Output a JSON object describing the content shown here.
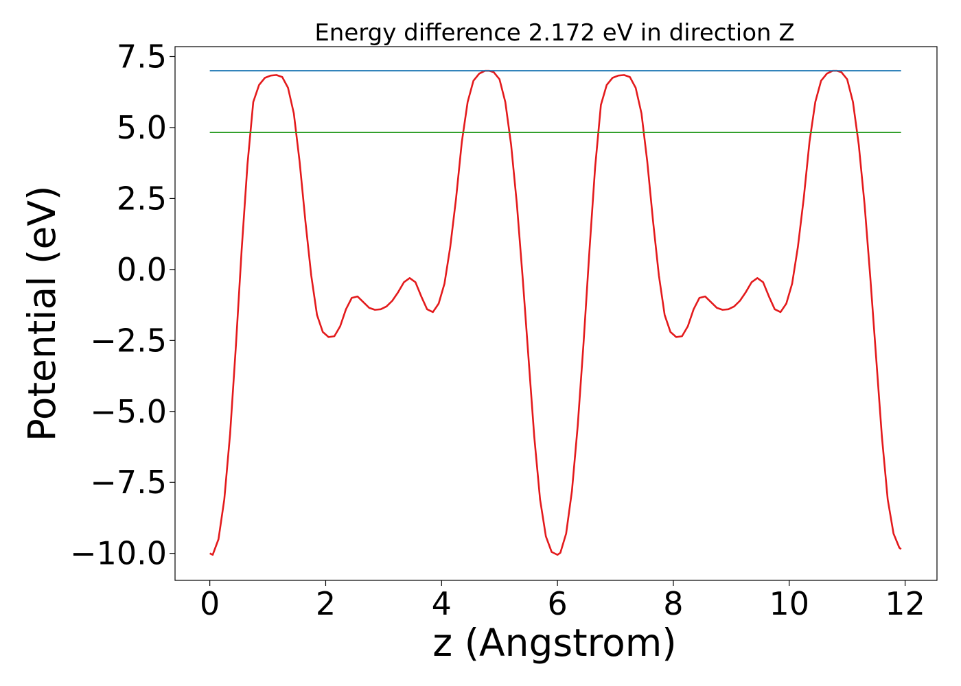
{
  "chart_data": {
    "type": "line",
    "title": "Energy difference 2.172 eV in direction Z",
    "xlabel": "z (Angstrom)",
    "ylabel": "Potential (eV)",
    "xlim": [
      -0.6,
      12.55
    ],
    "ylim": [
      -10.95,
      7.85
    ],
    "xticks": [
      0,
      2,
      4,
      6,
      8,
      10,
      12
    ],
    "xtick_labels": [
      "0",
      "2",
      "4",
      "6",
      "8",
      "10",
      "12"
    ],
    "yticks": [
      -10,
      -7.5,
      -5,
      -2.5,
      0,
      2.5,
      5,
      7.5
    ],
    "ytick_labels": [
      "−10.0",
      "−7.5",
      "−5.0",
      "−2.5",
      "0.0",
      "2.5",
      "5.0",
      "7.5"
    ],
    "grid": false,
    "series": [
      {
        "color": "#e31a1c",
        "x": [
          0,
          0.05,
          0.15,
          0.25,
          0.35,
          0.45,
          0.55,
          0.65,
          0.75,
          0.85,
          0.95,
          1.05,
          1.15,
          1.25,
          1.35,
          1.45,
          1.55,
          1.65,
          1.75,
          1.85,
          1.95,
          2.05,
          2.15,
          2.25,
          2.35,
          2.45,
          2.55,
          2.65,
          2.75,
          2.85,
          2.95,
          3.05,
          3.15,
          3.25,
          3.35,
          3.45,
          3.55,
          3.65,
          3.75,
          3.85,
          3.95,
          4.05,
          4.15,
          4.25,
          4.35,
          4.45,
          4.55,
          4.65,
          4.75,
          4.82,
          4.9,
          5.0,
          5.1,
          5.2,
          5.3,
          5.4,
          5.5,
          5.6,
          5.7,
          5.8,
          5.9,
          6.0,
          6.05,
          6.15,
          6.25,
          6.35,
          6.45,
          6.55,
          6.65,
          6.75,
          6.85,
          6.95,
          7.05,
          7.15,
          7.25,
          7.35,
          7.45,
          7.55,
          7.65,
          7.75,
          7.85,
          7.95,
          8.05,
          8.15,
          8.25,
          8.35,
          8.45,
          8.55,
          8.65,
          8.75,
          8.85,
          8.95,
          9.05,
          9.15,
          9.25,
          9.35,
          9.45,
          9.55,
          9.65,
          9.75,
          9.85,
          9.95,
          10.05,
          10.15,
          10.25,
          10.35,
          10.45,
          10.55,
          10.65,
          10.75,
          10.82,
          10.9,
          11.0,
          11.1,
          11.2,
          11.3,
          11.4,
          11.5,
          11.6,
          11.7,
          11.8,
          11.9,
          11.93
        ],
        "y": [
          -10.0,
          -10.05,
          -9.5,
          -8.1,
          -5.8,
          -2.7,
          0.7,
          3.7,
          5.9,
          6.5,
          6.75,
          6.83,
          6.85,
          6.78,
          6.4,
          5.5,
          3.8,
          1.7,
          -0.2,
          -1.6,
          -2.2,
          -2.38,
          -2.35,
          -2.0,
          -1.4,
          -1.0,
          -0.95,
          -1.15,
          -1.35,
          -1.42,
          -1.4,
          -1.3,
          -1.1,
          -0.8,
          -0.45,
          -0.3,
          -0.45,
          -0.95,
          -1.4,
          -1.5,
          -1.2,
          -0.5,
          0.8,
          2.5,
          4.5,
          5.9,
          6.65,
          6.9,
          7.0,
          7.0,
          6.95,
          6.7,
          5.9,
          4.4,
          2.3,
          -0.3,
          -3.1,
          -5.9,
          -8.1,
          -9.4,
          -9.95,
          -10.05,
          -9.98,
          -9.3,
          -7.8,
          -5.5,
          -2.6,
          0.6,
          3.6,
          5.8,
          6.5,
          6.75,
          6.83,
          6.85,
          6.78,
          6.4,
          5.5,
          3.8,
          1.7,
          -0.2,
          -1.6,
          -2.2,
          -2.38,
          -2.35,
          -2.0,
          -1.4,
          -1.0,
          -0.95,
          -1.15,
          -1.35,
          -1.42,
          -1.4,
          -1.3,
          -1.1,
          -0.8,
          -0.45,
          -0.3,
          -0.45,
          -0.95,
          -1.4,
          -1.5,
          -1.2,
          -0.5,
          0.8,
          2.5,
          4.5,
          5.9,
          6.65,
          6.9,
          7.0,
          7.0,
          6.95,
          6.7,
          5.9,
          4.4,
          2.3,
          -0.3,
          -3.1,
          -5.9,
          -8.1,
          -9.3,
          -9.8,
          -9.85
        ]
      },
      {
        "color": "#1f78b4",
        "x": [
          0,
          11.93
        ],
        "y": [
          7.0,
          7.0
        ]
      },
      {
        "color": "#33a02c",
        "x": [
          0,
          11.93
        ],
        "y": [
          4.83,
          4.83
        ]
      }
    ]
  }
}
